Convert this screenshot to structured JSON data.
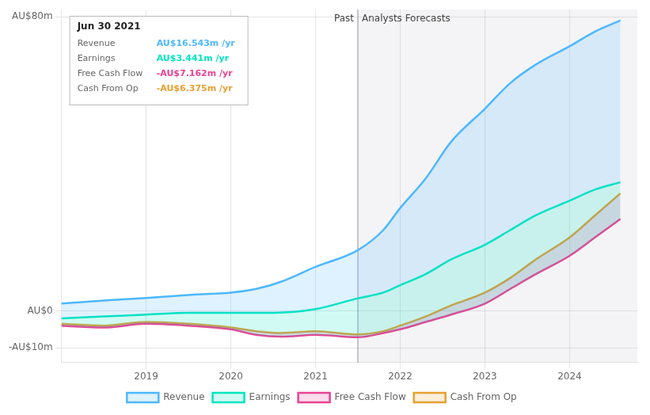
{
  "chart_data": {
    "type": "line",
    "title": "Jun 30 2021",
    "info_rows": [
      {
        "label": "Revenue",
        "value": "AU$16.543m /yr"
      },
      {
        "label": "Earnings",
        "value": "AU$3.441m /yr"
      },
      {
        "label": "Free Cash Flow",
        "value": "-AU$7.162m /yr"
      },
      {
        "label": "Cash From Op",
        "value": "-AU$6.375m /yr"
      }
    ],
    "series": [
      {
        "name": "Revenue",
        "color": "#4db8ff",
        "x": [
          2018.0,
          2018.3,
          2018.6,
          2019.0,
          2019.3,
          2019.6,
          2020.0,
          2020.3,
          2020.6,
          2021.0,
          2021.5,
          2021.8,
          2022.0,
          2022.3,
          2022.6,
          2023.0,
          2023.3,
          2023.6,
          2024.0,
          2024.3,
          2024.6
        ],
        "values": [
          2.0,
          2.5,
          3.0,
          3.5,
          4.0,
          4.5,
          5.0,
          6.0,
          8.0,
          12.0,
          16.543,
          22.0,
          28.0,
          36.0,
          46.0,
          55.0,
          62.0,
          67.0,
          72.0,
          76.0,
          79.0
        ]
      },
      {
        "name": "Earnings",
        "color": "#00e5c0",
        "x": [
          2018.0,
          2018.5,
          2019.0,
          2019.5,
          2020.0,
          2020.5,
          2021.0,
          2021.5,
          2021.8,
          2022.0,
          2022.3,
          2022.6,
          2023.0,
          2023.3,
          2023.6,
          2024.0,
          2024.3,
          2024.6
        ],
        "values": [
          -2.0,
          -1.5,
          -1.0,
          -0.5,
          -0.5,
          -0.5,
          0.5,
          3.441,
          5.0,
          7.0,
          10.0,
          14.0,
          18.0,
          22.0,
          26.0,
          30.0,
          33.0,
          35.0
        ]
      },
      {
        "name": "Free Cash Flow",
        "color": "#e84393",
        "x": [
          2018.0,
          2018.5,
          2019.0,
          2019.5,
          2020.0,
          2020.3,
          2020.6,
          2021.0,
          2021.5,
          2021.8,
          2022.0,
          2022.3,
          2022.6,
          2023.0,
          2023.3,
          2023.6,
          2024.0,
          2024.3,
          2024.6
        ],
        "values": [
          -4.0,
          -4.5,
          -3.5,
          -4.0,
          -5.0,
          -6.5,
          -7.0,
          -6.5,
          -7.162,
          -6.0,
          -5.0,
          -3.0,
          -1.0,
          2.0,
          6.0,
          10.0,
          15.0,
          20.0,
          25.0
        ]
      },
      {
        "name": "Cash From Op",
        "color": "#e8a030",
        "x": [
          2018.0,
          2018.5,
          2019.0,
          2019.5,
          2020.0,
          2020.3,
          2020.6,
          2021.0,
          2021.5,
          2021.8,
          2022.0,
          2022.3,
          2022.6,
          2023.0,
          2023.3,
          2023.6,
          2024.0,
          2024.3,
          2024.6
        ],
        "values": [
          -3.5,
          -4.0,
          -3.0,
          -3.5,
          -4.5,
          -5.5,
          -6.0,
          -5.5,
          -6.375,
          -5.5,
          -4.0,
          -1.5,
          1.5,
          5.0,
          9.0,
          14.0,
          20.0,
          26.0,
          32.0
        ]
      }
    ],
    "xlim": [
      2018.0,
      2024.8
    ],
    "xticks": [
      2019,
      2020,
      2021,
      2022,
      2023,
      2024
    ],
    "ylim": [
      -14,
      82
    ],
    "yticks": [
      {
        "value": 80,
        "label": "AU$80m"
      },
      {
        "value": 0,
        "label": "AU$0"
      },
      {
        "value": -10,
        "label": "-AU$10m"
      }
    ],
    "grid": true,
    "legend": "bottom",
    "annotations": [
      {
        "text": "Past",
        "x": 2021.5,
        "align": "right"
      },
      {
        "text": "Analysts Forecasts",
        "x": 2021.5,
        "align": "left"
      }
    ]
  }
}
